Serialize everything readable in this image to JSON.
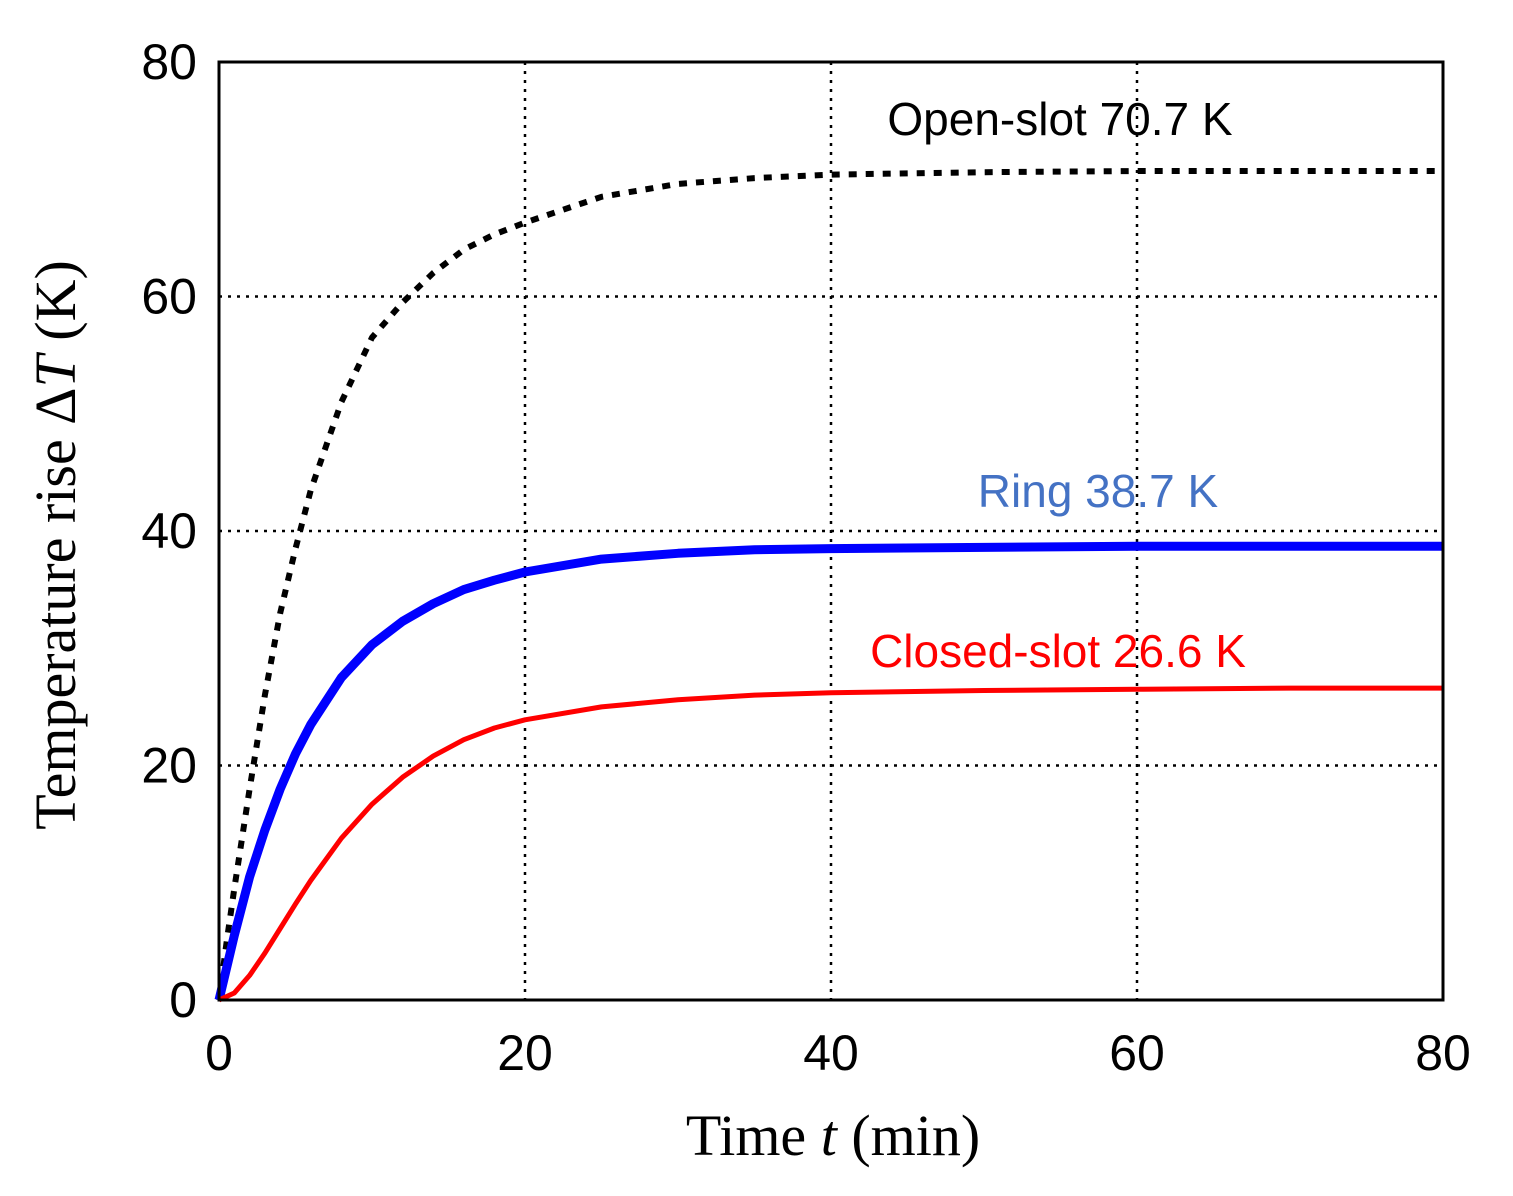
{
  "chart_data": {
    "type": "line",
    "xlabel": {
      "prefix": "Time ",
      "var": "t",
      "suffix": " (min)"
    },
    "ylabel": {
      "prefix": "Temperature rise Δ",
      "var": "T",
      "suffix": " (K)"
    },
    "xlim": [
      0,
      80
    ],
    "ylim": [
      0,
      80
    ],
    "xticks": [
      0,
      20,
      40,
      60,
      80
    ],
    "yticks": [
      0,
      20,
      40,
      60,
      80
    ],
    "grid": true,
    "series": [
      {
        "key": "open",
        "name": "Open-slot 70.7 K",
        "color": "#000000",
        "style": "dotted",
        "x": [
          0,
          0.5,
          1,
          2,
          3,
          4,
          5,
          6,
          8,
          10,
          12,
          14,
          16,
          18,
          20,
          25,
          30,
          35,
          40,
          50,
          60,
          70,
          80
        ],
        "y": [
          0,
          5,
          9.5,
          18,
          26,
          33,
          38.5,
          43.5,
          51,
          56.5,
          59.5,
          62,
          64,
          65.3,
          66.3,
          68.5,
          69.6,
          70.1,
          70.4,
          70.6,
          70.7,
          70.7,
          70.7
        ]
      },
      {
        "key": "ring",
        "name": "Ring 38.7 K",
        "color": "#0000ff",
        "style": "solid-thick",
        "x": [
          0,
          1,
          2,
          3,
          4,
          5,
          6,
          8,
          10,
          12,
          14,
          16,
          18,
          20,
          25,
          30,
          35,
          40,
          50,
          60,
          70,
          80
        ],
        "y": [
          0,
          5.5,
          10.5,
          14.5,
          18,
          21,
          23.5,
          27.5,
          30.3,
          32.3,
          33.8,
          35,
          35.8,
          36.5,
          37.6,
          38.1,
          38.4,
          38.5,
          38.6,
          38.7,
          38.7,
          38.7
        ]
      },
      {
        "key": "closed",
        "name": "Closed-slot 26.6 K",
        "color": "#ff0000",
        "style": "solid",
        "x": [
          0,
          1,
          2,
          3,
          4,
          5,
          6,
          8,
          10,
          12,
          14,
          16,
          18,
          20,
          25,
          30,
          35,
          40,
          50,
          60,
          70,
          80
        ],
        "y": [
          0,
          0.6,
          2.1,
          4,
          6.1,
          8.2,
          10.2,
          13.8,
          16.7,
          19,
          20.8,
          22.2,
          23.2,
          23.9,
          25,
          25.6,
          26,
          26.2,
          26.4,
          26.5,
          26.6,
          26.6
        ]
      }
    ]
  },
  "annotations": {
    "open": "Open-slot 70.7 K",
    "ring": "Ring 38.7 K",
    "closed": "Closed-slot 26.6 K"
  },
  "annotation_colors": {
    "open": "#000000",
    "ring": "#4472c4",
    "closed": "#ff0000"
  }
}
